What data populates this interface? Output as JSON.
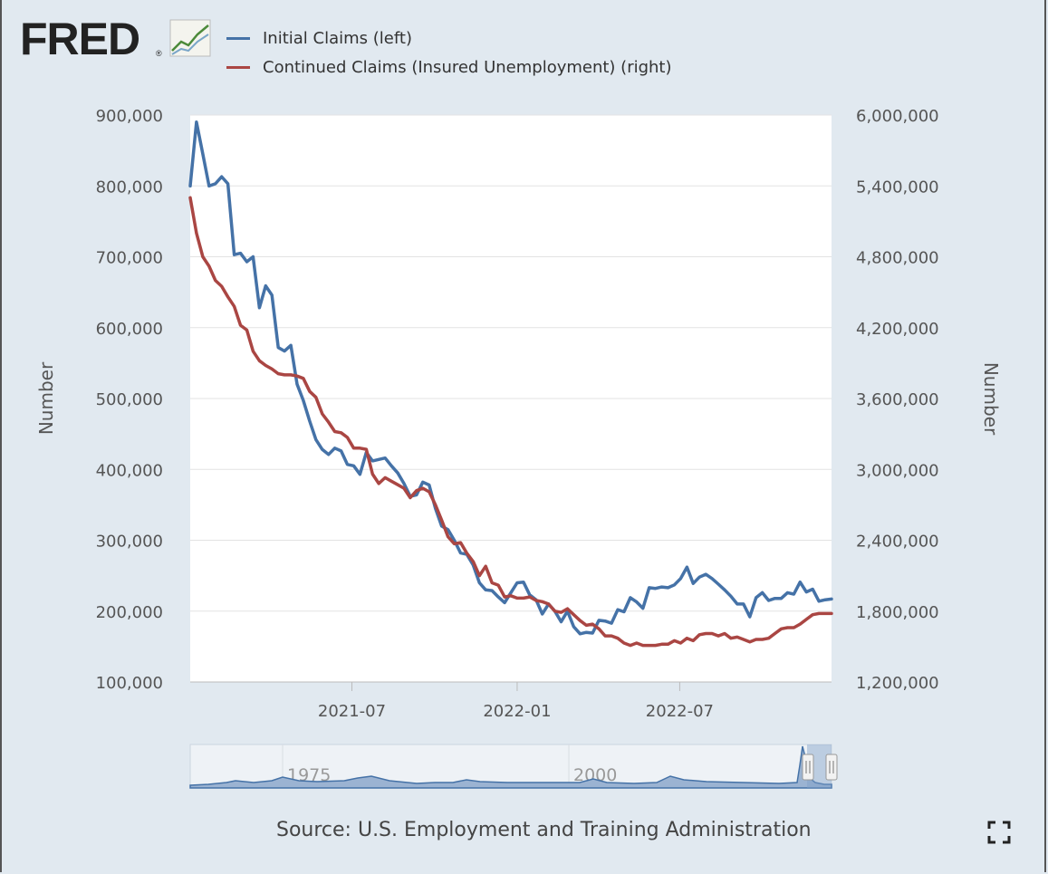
{
  "brand": {
    "logo_text": "FRED",
    "logo_mark": "®",
    "chart_icon": "line-chart-icon"
  },
  "legend": [
    {
      "label": "Initial Claims (left)",
      "color": "#4572a7"
    },
    {
      "label": "Continued Claims (Insured Unemployment) (right)",
      "color": "#aa4643"
    }
  ],
  "source": "Source: U.S. Employment and Training Administration",
  "icons": {
    "fullscreen": "fullscreen-icon"
  },
  "navigator": {
    "labels": [
      "1975",
      "2000"
    ]
  },
  "chart_data": {
    "type": "line",
    "title": "",
    "xlabel": "",
    "ylabel_left": "Number",
    "ylabel_right": "Number",
    "ylim_left": [
      100000,
      900000
    ],
    "ylim_right": [
      1200000,
      6000000
    ],
    "yticks_left": [
      "100,000",
      "200,000",
      "300,000",
      "400,000",
      "500,000",
      "600,000",
      "700,000",
      "800,000",
      "900,000"
    ],
    "yticks_right": [
      "1,200,000",
      "1,800,000",
      "2,400,000",
      "3,000,000",
      "3,600,000",
      "4,200,000",
      "4,800,000",
      "5,400,000",
      "6,000,000"
    ],
    "xticks": [
      {
        "label": "2021-07",
        "date": "2021-07-01"
      },
      {
        "label": "2022-01",
        "date": "2022-01-01"
      },
      {
        "label": "2022-07",
        "date": "2022-07-01"
      }
    ],
    "xrange": [
      "2021-01-02",
      "2022-12-17"
    ],
    "grid": true,
    "legend_position": "top",
    "series": [
      {
        "name": "Initial Claims (left)",
        "axis": "left",
        "color": "#4572a7",
        "x": [
          "2021-01-02",
          "2021-01-09",
          "2021-01-16",
          "2021-01-23",
          "2021-01-30",
          "2021-02-06",
          "2021-02-13",
          "2021-02-20",
          "2021-02-27",
          "2021-03-06",
          "2021-03-13",
          "2021-03-20",
          "2021-03-27",
          "2021-04-03",
          "2021-04-10",
          "2021-04-17",
          "2021-04-24",
          "2021-05-01",
          "2021-05-08",
          "2021-05-15",
          "2021-05-22",
          "2021-05-29",
          "2021-06-05",
          "2021-06-12",
          "2021-06-19",
          "2021-06-26",
          "2021-07-03",
          "2021-07-10",
          "2021-07-17",
          "2021-07-24",
          "2021-07-31",
          "2021-08-07",
          "2021-08-14",
          "2021-08-21",
          "2021-08-28",
          "2021-09-04",
          "2021-09-11",
          "2021-09-18",
          "2021-09-25",
          "2021-10-02",
          "2021-10-09",
          "2021-10-16",
          "2021-10-23",
          "2021-10-30",
          "2021-11-06",
          "2021-11-13",
          "2021-11-20",
          "2021-11-27",
          "2021-12-04",
          "2021-12-11",
          "2021-12-18",
          "2021-12-25",
          "2022-01-01",
          "2022-01-08",
          "2022-01-15",
          "2022-01-22",
          "2022-01-29",
          "2022-02-05",
          "2022-02-12",
          "2022-02-19",
          "2022-02-26",
          "2022-03-05",
          "2022-03-12",
          "2022-03-19",
          "2022-03-26",
          "2022-04-02",
          "2022-04-09",
          "2022-04-16",
          "2022-04-23",
          "2022-04-30",
          "2022-05-07",
          "2022-05-14",
          "2022-05-21",
          "2022-05-28",
          "2022-06-04",
          "2022-06-11",
          "2022-06-18",
          "2022-06-25",
          "2022-07-02",
          "2022-07-09",
          "2022-07-16",
          "2022-07-23",
          "2022-07-30",
          "2022-08-06",
          "2022-08-13",
          "2022-08-20",
          "2022-08-27",
          "2022-09-03",
          "2022-09-10",
          "2022-09-17",
          "2022-09-24",
          "2022-10-01",
          "2022-10-08",
          "2022-10-15",
          "2022-10-22",
          "2022-10-29",
          "2022-11-05",
          "2022-11-12",
          "2022-11-19",
          "2022-11-26",
          "2022-12-03",
          "2022-12-10",
          "2022-12-17"
        ],
        "values": [
          800000,
          890000,
          845000,
          800000,
          803000,
          813000,
          803000,
          703000,
          705000,
          693000,
          700000,
          628000,
          659000,
          646000,
          572000,
          567000,
          575000,
          520000,
          497000,
          468000,
          442000,
          428000,
          421000,
          430000,
          426000,
          407000,
          405000,
          393000,
          424000,
          412000,
          414000,
          416000,
          405000,
          395000,
          380000,
          362000,
          364000,
          382000,
          378000,
          345000,
          320000,
          315000,
          300000,
          282000,
          280000,
          265000,
          240000,
          230000,
          229000,
          220000,
          212000,
          226000,
          240000,
          241000,
          223000,
          216000,
          196000,
          210000,
          200000,
          185000,
          200000,
          178000,
          168000,
          170000,
          169000,
          187000,
          186000,
          183000,
          202000,
          199000,
          219000,
          213000,
          204000,
          233000,
          232000,
          234000,
          233000,
          237000,
          246000,
          262000,
          239000,
          248000,
          252000,
          246000,
          238000,
          230000,
          221000,
          210000,
          210000,
          192000,
          219000,
          226000,
          215000,
          218000,
          218000,
          226000,
          224000,
          241000,
          227000,
          231000,
          214000,
          216000,
          217000
        ]
      },
      {
        "name": "Continued Claims (Insured Unemployment) (right)",
        "axis": "right",
        "color": "#aa4643",
        "x": [
          "2021-01-02",
          "2021-01-09",
          "2021-01-16",
          "2021-01-23",
          "2021-01-30",
          "2021-02-06",
          "2021-02-13",
          "2021-02-20",
          "2021-02-27",
          "2021-03-06",
          "2021-03-13",
          "2021-03-20",
          "2021-03-27",
          "2021-04-03",
          "2021-04-10",
          "2021-04-17",
          "2021-04-24",
          "2021-05-01",
          "2021-05-08",
          "2021-05-15",
          "2021-05-22",
          "2021-05-29",
          "2021-06-05",
          "2021-06-12",
          "2021-06-19",
          "2021-06-26",
          "2021-07-03",
          "2021-07-10",
          "2021-07-17",
          "2021-07-24",
          "2021-07-31",
          "2021-08-07",
          "2021-08-14",
          "2021-08-21",
          "2021-08-28",
          "2021-09-04",
          "2021-09-11",
          "2021-09-18",
          "2021-09-25",
          "2021-10-02",
          "2021-10-09",
          "2021-10-16",
          "2021-10-23",
          "2021-10-30",
          "2021-11-06",
          "2021-11-13",
          "2021-11-20",
          "2021-11-27",
          "2021-12-04",
          "2021-12-11",
          "2021-12-18",
          "2021-12-25",
          "2022-01-01",
          "2022-01-08",
          "2022-01-15",
          "2022-01-22",
          "2022-01-29",
          "2022-02-05",
          "2022-02-12",
          "2022-02-19",
          "2022-02-26",
          "2022-03-05",
          "2022-03-12",
          "2022-03-19",
          "2022-03-26",
          "2022-04-02",
          "2022-04-09",
          "2022-04-16",
          "2022-04-23",
          "2022-04-30",
          "2022-05-07",
          "2022-05-14",
          "2022-05-21",
          "2022-05-28",
          "2022-06-04",
          "2022-06-11",
          "2022-06-18",
          "2022-06-25",
          "2022-07-02",
          "2022-07-09",
          "2022-07-16",
          "2022-07-23",
          "2022-07-30",
          "2022-08-06",
          "2022-08-13",
          "2022-08-20",
          "2022-08-27",
          "2022-09-03",
          "2022-09-10",
          "2022-09-17",
          "2022-09-24",
          "2022-10-01",
          "2022-10-08",
          "2022-10-15",
          "2022-10-22",
          "2022-10-29",
          "2022-11-05",
          "2022-11-12",
          "2022-11-19",
          "2022-11-26",
          "2022-12-03",
          "2022-12-10",
          "2022-12-17"
        ],
        "values": [
          5300000,
          5000000,
          4800000,
          4720000,
          4600000,
          4550000,
          4460000,
          4380000,
          4220000,
          4180000,
          4000000,
          3920000,
          3880000,
          3850000,
          3810000,
          3800000,
          3800000,
          3790000,
          3770000,
          3660000,
          3610000,
          3470000,
          3400000,
          3320000,
          3310000,
          3270000,
          3180000,
          3180000,
          3170000,
          2960000,
          2880000,
          2930000,
          2900000,
          2870000,
          2840000,
          2760000,
          2820000,
          2840000,
          2810000,
          2700000,
          2570000,
          2430000,
          2370000,
          2380000,
          2290000,
          2220000,
          2100000,
          2180000,
          2040000,
          2020000,
          1920000,
          1930000,
          1910000,
          1910000,
          1920000,
          1890000,
          1880000,
          1860000,
          1800000,
          1790000,
          1820000,
          1770000,
          1720000,
          1680000,
          1690000,
          1650000,
          1590000,
          1590000,
          1570000,
          1530000,
          1510000,
          1530000,
          1510000,
          1510000,
          1510000,
          1520000,
          1520000,
          1550000,
          1530000,
          1570000,
          1550000,
          1600000,
          1610000,
          1610000,
          1590000,
          1610000,
          1570000,
          1580000,
          1560000,
          1540000,
          1560000,
          1560000,
          1570000,
          1610000,
          1650000,
          1660000,
          1660000,
          1690000,
          1730000,
          1770000,
          1780000,
          1780000,
          1780000
        ]
      }
    ]
  }
}
